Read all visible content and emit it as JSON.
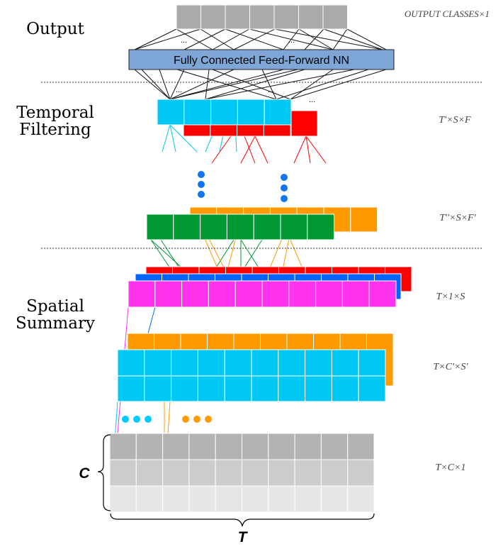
{
  "section_labels": {
    "output": "Output",
    "temporal_line1": "Temporal",
    "temporal_line2": "Filtering",
    "spatial_line1": "Spatial",
    "spatial_line2": "Summary"
  },
  "fc_layer_label": "Fully Connected Feed-Forward NN",
  "dims": {
    "output": "OUTPUT CLASSES×1",
    "temporal": "T'×S×F",
    "temporal2": "T''×S×F'",
    "spatial": "T×1×S",
    "spatial2": "T×C'×S'",
    "input": "T×C×1"
  },
  "ellipsis": "...",
  "axis_labels": {
    "channels": "C",
    "time": "T"
  },
  "colors": {
    "output_cells": "#aaaaaa",
    "fc_fill": "#7ea6d6",
    "cyan": "#00c8f5",
    "red": "#ff0000",
    "green": "#009933",
    "orange": "#ff9900",
    "blue": "#0066ff",
    "magenta": "#ff33ee",
    "dot_blue": "#1177ee",
    "dot_cyan": "#00ccff",
    "dot_orange": "#ff9900",
    "input_top": "#b3b3b3",
    "input_mid": "#cccccc",
    "input_bottom": "#e6e6e6"
  }
}
